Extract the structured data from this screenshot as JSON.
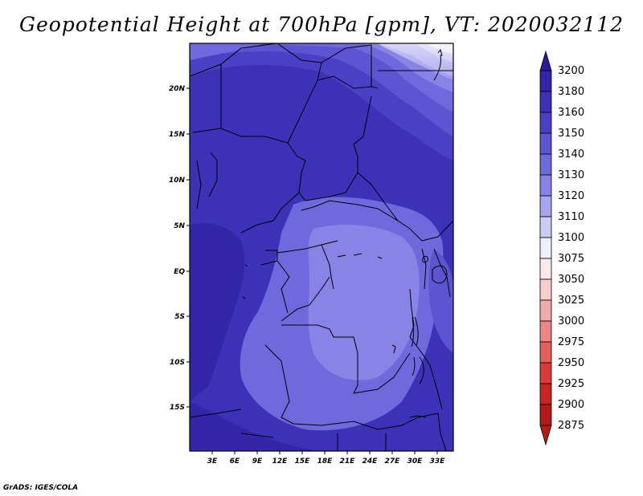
{
  "title": "Geopotential Height at 700hPa [gpm], VT: 2020032112",
  "credit": "GrADS: IGES/COLA",
  "map": {
    "lat_labels": [
      "20N",
      "15N",
      "10N",
      "5N",
      "EQ",
      "5S",
      "10S",
      "15S"
    ],
    "lon_labels": [
      "3E",
      "6E",
      "9E",
      "12E",
      "15E",
      "18E",
      "21E",
      "24E",
      "27E",
      "30E",
      "33E"
    ]
  },
  "legend": {
    "levels": [
      "3200",
      "3180",
      "3160",
      "3150",
      "3140",
      "3130",
      "3120",
      "3110",
      "3100",
      "3075",
      "3050",
      "3025",
      "3000",
      "2975",
      "2950",
      "2925",
      "2900",
      "2875"
    ],
    "colors": [
      "#2a1a9a",
      "#3325a8",
      "#3d31b8",
      "#4a40c6",
      "#5c54d0",
      "#6e69dc",
      "#8884e6",
      "#a8a5f0",
      "#cccbf6",
      "#eeeefc",
      "#fce8e8",
      "#f8cdcd",
      "#f3aaaa",
      "#ec8585",
      "#e45e5e",
      "#d93a3a",
      "#c82424",
      "#b41a1a"
    ]
  }
}
